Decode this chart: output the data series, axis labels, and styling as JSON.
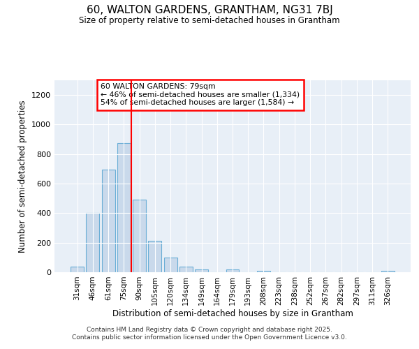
{
  "title": "60, WALTON GARDENS, GRANTHAM, NG31 7BJ",
  "subtitle": "Size of property relative to semi-detached houses in Grantham",
  "xlabel": "Distribution of semi-detached houses by size in Grantham",
  "ylabel": "Number of semi-detached properties",
  "bar_labels": [
    "31sqm",
    "46sqm",
    "61sqm",
    "75sqm",
    "90sqm",
    "105sqm",
    "120sqm",
    "134sqm",
    "149sqm",
    "164sqm",
    "179sqm",
    "193sqm",
    "208sqm",
    "223sqm",
    "238sqm",
    "252sqm",
    "267sqm",
    "282sqm",
    "297sqm",
    "311sqm",
    "326sqm"
  ],
  "bar_values": [
    40,
    400,
    695,
    875,
    490,
    215,
    97,
    40,
    20,
    0,
    18,
    0,
    10,
    0,
    0,
    0,
    0,
    0,
    0,
    0,
    10
  ],
  "bar_color": "#c9d9eb",
  "bar_edgecolor": "#6aaed6",
  "vline_x": 3.5,
  "vline_color": "red",
  "annotation_line1": "60 WALTON GARDENS: 79sqm",
  "annotation_line2": "← 46% of semi-detached houses are smaller (1,334)",
  "annotation_line3": "54% of semi-detached houses are larger (1,584) →",
  "ylim": [
    0,
    1300
  ],
  "yticks": [
    0,
    200,
    400,
    600,
    800,
    1000,
    1200
  ],
  "plot_bg": "#e8eff7",
  "footer_line1": "Contains HM Land Registry data © Crown copyright and database right 2025.",
  "footer_line2": "Contains public sector information licensed under the Open Government Licence v3.0."
}
